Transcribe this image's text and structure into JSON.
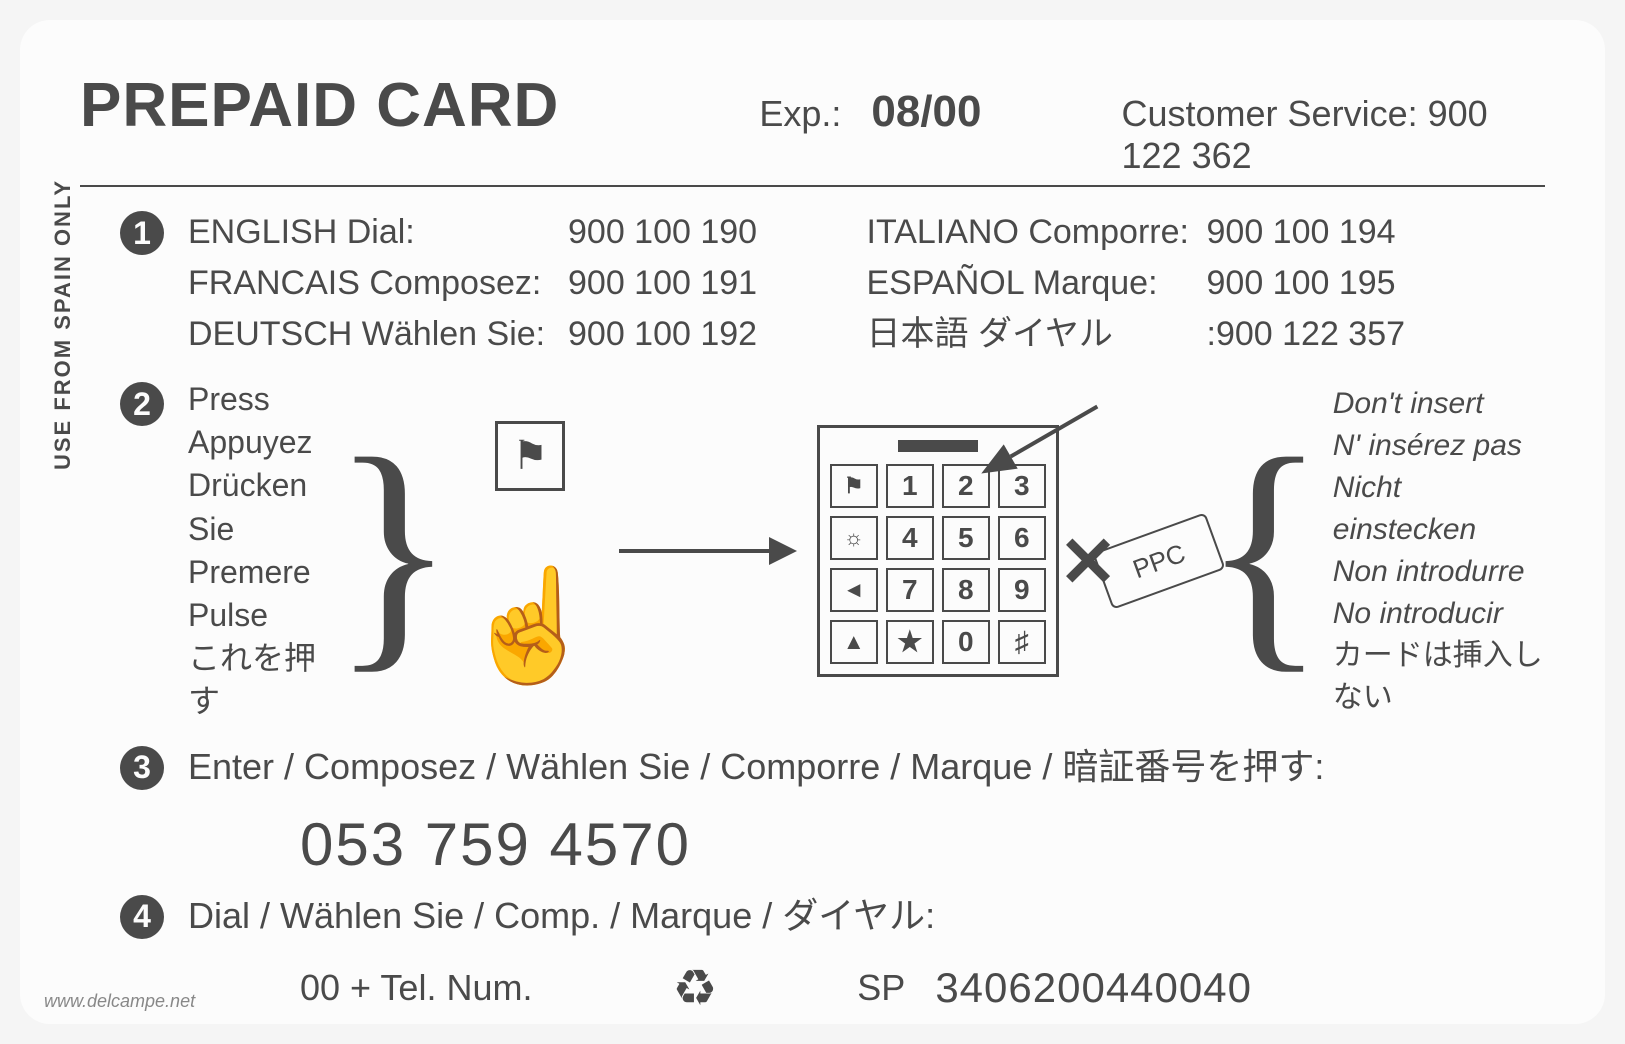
{
  "header": {
    "title": "PREPAID CARD",
    "exp_label": "Exp.:",
    "exp_value": "08/00",
    "cust_service": "Customer Service: 900 122 362"
  },
  "side_text": "USE FROM SPAIN ONLY",
  "step1": {
    "left": [
      {
        "label": "ENGLISH Dial:",
        "num": "900 100 190"
      },
      {
        "label": "FRANCAIS Composez:",
        "num": "900 100 191"
      },
      {
        "label": "DEUTSCH Wählen Sie:",
        "num": "900 100 192"
      }
    ],
    "right": [
      {
        "label": "ITALIANO Comporre:",
        "num": "900 100 194"
      },
      {
        "label": "ESPAÑOL Marque:",
        "num": "900 100 195"
      },
      {
        "label": "日本語 ダイヤル",
        "num": ":900 122 357"
      }
    ]
  },
  "step2": {
    "press": [
      "Press",
      "Appuyez",
      "Drücken Sie",
      "Premere",
      "Pulse",
      "これを押す"
    ],
    "flag_icon": "⚑",
    "finger_icon": "☝",
    "keypad": {
      "screen": "—",
      "rows": [
        [
          "⚑",
          "1",
          "2",
          "3"
        ],
        [
          "☼",
          "4",
          "5",
          "6"
        ],
        [
          "◄",
          "7",
          "8",
          "9"
        ],
        [
          "▲",
          "★",
          "0",
          "♯"
        ]
      ]
    },
    "ppc_label": "PPC",
    "dont": [
      "Don't insert",
      "N' insérez pas",
      "Nicht einstecken",
      "Non introdurre",
      "No introducir",
      "カードは挿入しない"
    ]
  },
  "step3": {
    "text": "Enter / Composez / Wählen Sie / Comporre / Marque / 暗証番号を押す:",
    "pin": "053 759 4570"
  },
  "step4": {
    "text": "Dial / Wählen Sie / Comp. / Marque / ダイヤル:",
    "tel": "00 + Tel. Num.",
    "recycle": "♻",
    "serial_label": "SP",
    "serial_num": "3406200440040"
  },
  "watermark": "www.delcampe.net",
  "colors": {
    "text": "#4a4a4a",
    "bg": "#fcfcfc"
  }
}
